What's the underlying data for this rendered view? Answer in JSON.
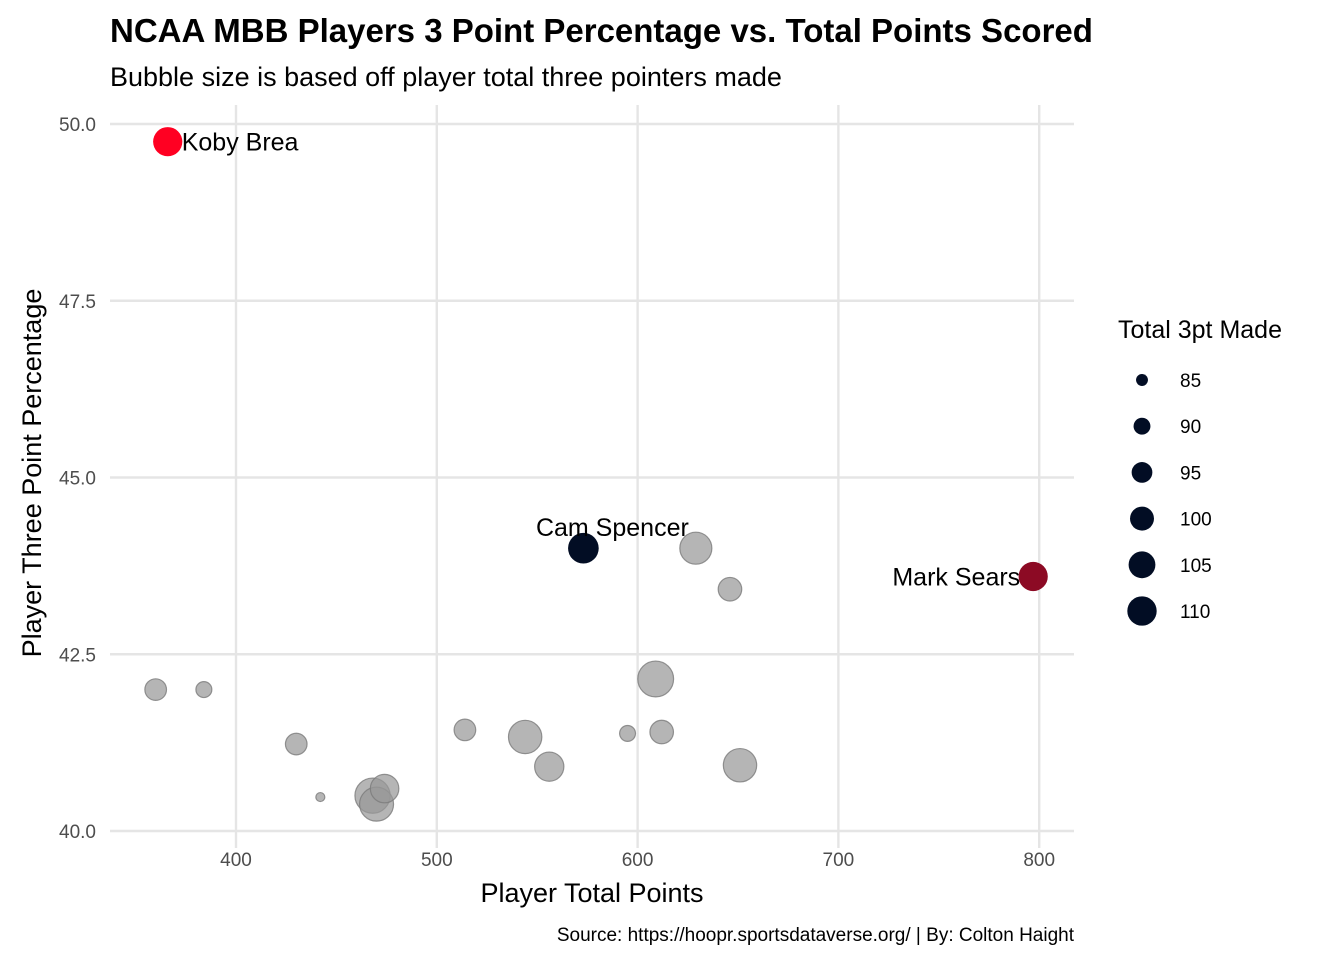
{
  "chart_data": {
    "type": "scatter",
    "title": "NCAA MBB Players 3 Point Percentage vs. Total Points Scored",
    "subtitle": "Bubble size is based off player total three pointers made",
    "xlabel": "Player Total Points",
    "ylabel": "Player Three Point Percentage",
    "caption": "Source: https://hoopr.sportsdataverse.org/ | By: Colton Haight",
    "xlim": [
      340,
      820
    ],
    "ylim": [
      40,
      50.2
    ],
    "x_ticks": [
      "400",
      "500",
      "600",
      "700",
      "800"
    ],
    "y_ticks": [
      "40.0",
      "42.5",
      "45.0",
      "47.5",
      "50.0"
    ],
    "grid": true,
    "legend": {
      "title": "Total 3pt Made",
      "position": "right",
      "entries": [
        "85",
        "90",
        "95",
        "100",
        "105",
        "110"
      ]
    },
    "size_range": [
      82,
      112
    ],
    "highlighted": [
      {
        "label": "Koby Brea",
        "x": 366,
        "y": 49.75,
        "size": 100,
        "color": "#ff0022"
      },
      {
        "label": "Cam Spencer",
        "x": 573,
        "y": 44.0,
        "size": 102,
        "color": "#020d24"
      },
      {
        "label": "Mark Sears",
        "x": 797,
        "y": 43.6,
        "size": 100,
        "color": "#8c0a24"
      }
    ],
    "others": [
      {
        "x": 360,
        "y": 42.0,
        "size": 91
      },
      {
        "x": 384,
        "y": 42.0,
        "size": 86
      },
      {
        "x": 430,
        "y": 41.23,
        "size": 91
      },
      {
        "x": 442,
        "y": 40.48,
        "size": 82
      },
      {
        "x": 468,
        "y": 40.5,
        "size": 109
      },
      {
        "x": 470,
        "y": 40.38,
        "size": 107
      },
      {
        "x": 474,
        "y": 40.6,
        "size": 99
      },
      {
        "x": 514,
        "y": 41.43,
        "size": 91
      },
      {
        "x": 544,
        "y": 41.33,
        "size": 106
      },
      {
        "x": 556,
        "y": 40.91,
        "size": 100
      },
      {
        "x": 595,
        "y": 41.38,
        "size": 86
      },
      {
        "x": 609,
        "y": 42.15,
        "size": 110
      },
      {
        "x": 612,
        "y": 41.4,
        "size": 93
      },
      {
        "x": 629,
        "y": 44.0,
        "size": 104
      },
      {
        "x": 646,
        "y": 43.42,
        "size": 93
      },
      {
        "x": 651,
        "y": 40.93,
        "size": 106
      }
    ],
    "colors": {
      "others": "#999999",
      "legend": "#020d24"
    }
  }
}
